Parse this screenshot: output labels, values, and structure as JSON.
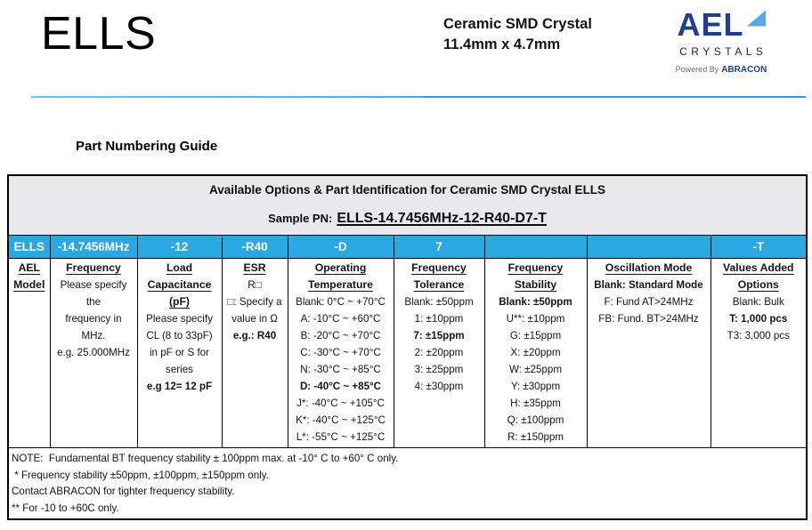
{
  "page": {
    "product": "ELLS",
    "subtitle": [
      "Ceramic SMD Crystal",
      "11.4mm x 4.7mm"
    ],
    "brand": {
      "name": "AEL",
      "word": "CRYSTALS",
      "powered_prefix": "Powered By",
      "powered_name": "ABRACON"
    },
    "section_title": "Part Numbering Guide"
  },
  "colors": {
    "accent_blue": "#29A9E1",
    "header_gray": "#E9E9EB",
    "rule_blue": "#3FB0E4",
    "brand_navy": "#1E4094",
    "brand_light_blue": "#55AAE6"
  },
  "table": {
    "title": "Available Options & Part Identification for Ceramic SMD Crystal ELLS",
    "sample_label": "Sample PN:",
    "sample_pn": "ELLS-14.7456MHz-12-R40-D7-T",
    "code_row": [
      "ELLS",
      "-14.7456MHz",
      "-12",
      "-R40",
      "-D",
      "7",
      "",
      "",
      "-T"
    ],
    "columns": [
      {
        "key": "ael-model",
        "title_lines": [
          "AEL",
          "Model"
        ],
        "items": []
      },
      {
        "key": "frequency",
        "title_lines": [
          "Frequency"
        ],
        "items": [
          {
            "text": "Please specify",
            "bold": false
          },
          {
            "text": "the",
            "bold": false
          },
          {
            "text": "frequency in",
            "bold": false
          },
          {
            "text": "MHz.",
            "bold": false
          },
          {
            "text": "e.g. 25.000MHz",
            "bold": false
          }
        ]
      },
      {
        "key": "load-capacitance",
        "title_lines": [
          "Load",
          "Capacitance",
          "(pF)"
        ],
        "items": [
          {
            "text": "Please specify",
            "bold": false
          },
          {
            "text": "CL (8 to 33pF)",
            "bold": false
          },
          {
            "text": "in pF or S for",
            "bold": false
          },
          {
            "text": "series",
            "bold": false
          },
          {
            "text": "e.g 12= 12 pF",
            "bold": true
          }
        ]
      },
      {
        "key": "esr",
        "title_lines": [
          "ESR"
        ],
        "items": [
          {
            "text": "R□",
            "bold": false
          },
          {
            "text": "□: Specify a",
            "bold": false
          },
          {
            "text": "value in Ω",
            "bold": false
          },
          {
            "text": "e.g.: R40",
            "bold": true
          }
        ]
      },
      {
        "key": "operating-temperature",
        "title_lines": [
          "Operating",
          "Temperature"
        ],
        "items": [
          {
            "text": "Blank: 0°C ~ +70°C",
            "bold": false
          },
          {
            "text": "A: -10°C ~ +60°C",
            "bold": false
          },
          {
            "text": "B: -20°C ~ +70°C",
            "bold": false
          },
          {
            "text": "C: -30°C ~ +70°C",
            "bold": false
          },
          {
            "text": "N: -30°C ~ +85°C",
            "bold": false
          },
          {
            "text": "D: -40°C ~ +85°C",
            "bold": true
          },
          {
            "text": "J*: -40°C ~ +105°C",
            "bold": false
          },
          {
            "text": "K*: -40°C ~ +125°C",
            "bold": false
          },
          {
            "text": "L*: -55°C ~ +125°C",
            "bold": false
          }
        ]
      },
      {
        "key": "frequency-tolerance",
        "title_lines": [
          "Frequency",
          "Tolerance"
        ],
        "items": [
          {
            "text": "Blank: ±50ppm",
            "bold": false
          },
          {
            "text": "1: ±10ppm",
            "bold": false
          },
          {
            "text": "7: ±15ppm",
            "bold": true
          },
          {
            "text": "2: ±20ppm",
            "bold": false
          },
          {
            "text": "3: ±25ppm",
            "bold": false
          },
          {
            "text": "4: ±30ppm",
            "bold": false
          }
        ]
      },
      {
        "key": "frequency-stability",
        "title_lines": [
          "Frequency",
          "Stability"
        ],
        "items": [
          {
            "text": "Blank: ±50ppm",
            "bold": true
          },
          {
            "text": "U**: ±10ppm",
            "bold": false
          },
          {
            "text": "G: ±15ppm",
            "bold": false
          },
          {
            "text": "X: ±20ppm",
            "bold": false
          },
          {
            "text": "W: ±25ppm",
            "bold": false
          },
          {
            "text": "Y: ±30ppm",
            "bold": false
          },
          {
            "text": "H: ±35ppm",
            "bold": false
          },
          {
            "text": "Q: ±100ppm",
            "bold": false
          },
          {
            "text": "R: ±150ppm",
            "bold": false
          }
        ]
      },
      {
        "key": "oscillation-mode",
        "title_lines": [
          "Oscillation Mode"
        ],
        "items": [
          {
            "text": "Blank: Standard Mode",
            "bold": true
          },
          {
            "text": "F: Fund AT>24MHz",
            "bold": false
          },
          {
            "text": "FB: Fund. BT>24MHz",
            "bold": false
          }
        ]
      },
      {
        "key": "values-added-options",
        "title_lines": [
          "Values Added",
          "Options"
        ],
        "items": [
          {
            "text": "Blank: Bulk",
            "bold": false
          },
          {
            "text": "T: 1,000 pcs",
            "bold": true
          },
          {
            "text": "T3: 3,000 pcs",
            "bold": false
          }
        ]
      }
    ]
  },
  "notes": [
    "NOTE:  Fundamental BT frequency stability ± 100ppm max. at -10° C to +60° C only.",
    " * Frequency stability ±50ppm, ±100ppm, ±150ppm only.",
    "Contact ABRACON for tighter frequency stability.",
    "** For -10 to +60C only."
  ]
}
